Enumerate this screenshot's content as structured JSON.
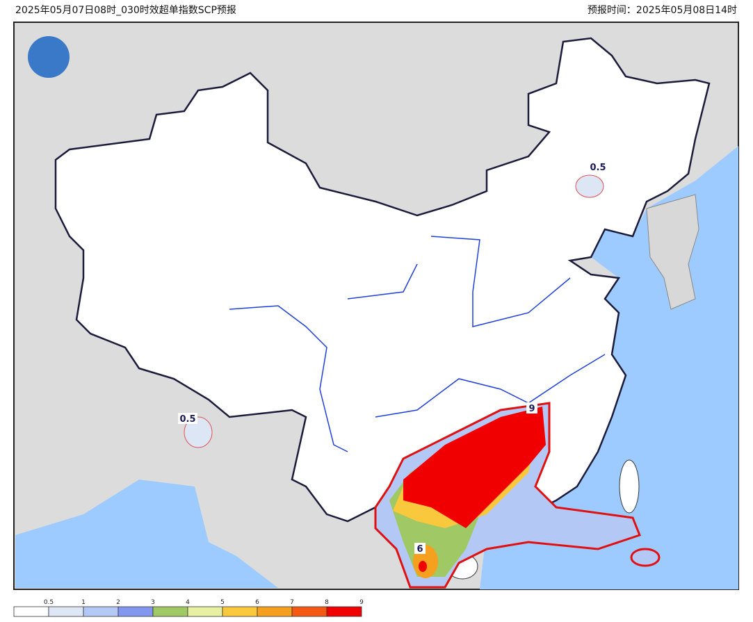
{
  "header": {
    "title": "2025年05月07日08时_030时效超单指数SCP预报",
    "valid_time": "预报时间：2025年05月08日14时"
  },
  "contour_labels": [
    0.5,
    0.5,
    9,
    6
  ],
  "legend": {
    "levels": [
      0.5,
      1,
      2,
      3,
      4,
      5,
      6,
      7,
      8,
      9
    ],
    "colors": [
      "#ffffff",
      "#dce6f5",
      "#b4c8f5",
      "#8296f0",
      "#a0c864",
      "#e6f0a0",
      "#fac83c",
      "#f5a01e",
      "#f55a14",
      "#f00000"
    ]
  }
}
